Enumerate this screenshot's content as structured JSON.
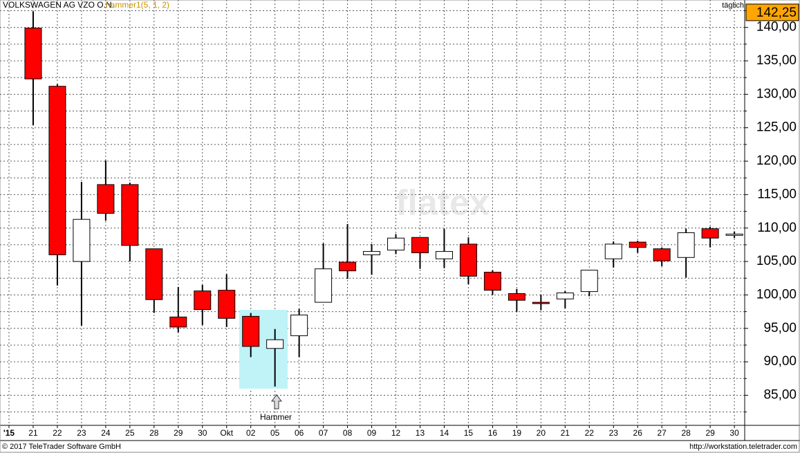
{
  "header": {
    "title": "VOLKSWAGEN AG VZO O.N.",
    "indicator": "hammer1(5, 1, 2)",
    "period": "täglich"
  },
  "watermark": "flatex",
  "footer": {
    "copyright": "© 2017 TeleTrader Software GmbH",
    "url": "http://workstation.teletrader.com"
  },
  "chart_data": {
    "type": "candlestick",
    "categories": [
      "'15",
      "21",
      "22",
      "23",
      "24",
      "25",
      "28",
      "29",
      "30",
      "Okt",
      "02",
      "05",
      "06",
      "07",
      "08",
      "09",
      "12",
      "13",
      "14",
      "15",
      "16",
      "19",
      "20",
      "21",
      "22",
      "23",
      "26",
      "27",
      "28",
      "29",
      "30"
    ],
    "open": [
      null,
      139.9,
      131.2,
      105.0,
      116.5,
      116.5,
      106.9,
      96.7,
      100.6,
      100.7,
      96.8,
      92.0,
      93.9,
      98.9,
      104.9,
      106.0,
      106.7,
      108.6,
      105.4,
      107.6,
      103.4,
      100.2,
      98.9,
      99.4,
      100.5,
      105.4,
      107.9,
      106.9,
      105.6,
      109.9,
      108.9
    ],
    "high": [
      null,
      142.4,
      131.5,
      116.9,
      120.1,
      116.8,
      106.9,
      101.2,
      101.5,
      103.1,
      97.3,
      94.9,
      97.9,
      107.7,
      110.6,
      107.6,
      109.1,
      108.6,
      109.9,
      108.6,
      103.7,
      100.9,
      100.0,
      100.6,
      103.7,
      108.0,
      108.1,
      107.1,
      109.9,
      110.2,
      109.5
    ],
    "low": [
      null,
      125.4,
      101.4,
      95.4,
      111.1,
      105.0,
      97.3,
      94.4,
      95.5,
      95.2,
      90.7,
      86.3,
      90.7,
      98.9,
      102.4,
      103.0,
      106.1,
      103.9,
      104.0,
      101.6,
      100.0,
      97.5,
      97.7,
      98.0,
      99.8,
      104.1,
      106.3,
      104.3,
      102.6,
      107.1,
      108.5
    ],
    "close": [
      null,
      132.3,
      106.0,
      111.3,
      112.2,
      107.4,
      99.3,
      95.2,
      97.8,
      96.5,
      92.3,
      93.3,
      97.0,
      103.9,
      103.6,
      106.5,
      108.5,
      106.3,
      106.5,
      102.8,
      100.7,
      99.2,
      98.7,
      100.3,
      103.7,
      107.6,
      107.1,
      105.1,
      109.3,
      108.5,
      109.1
    ],
    "up_color": "#ffffff",
    "down_color": "#ff0000",
    "last_price": {
      "value": 142.25,
      "label": "142,25"
    },
    "annotation": "Hammer",
    "ylim": [
      80.5,
      144.1
    ],
    "yticks": [
      {
        "value": 85,
        "label": "85,00"
      },
      {
        "value": 90,
        "label": "90,00"
      },
      {
        "value": 95,
        "label": "95,00"
      },
      {
        "value": 100,
        "label": "100,00"
      },
      {
        "value": 105,
        "label": "105,00"
      },
      {
        "value": 110,
        "label": "110,00"
      },
      {
        "value": 115,
        "label": "115,00"
      },
      {
        "value": 120,
        "label": "120,00"
      },
      {
        "value": 125,
        "label": "125,00"
      },
      {
        "value": 130,
        "label": "130,00"
      },
      {
        "value": 135,
        "label": "135,00"
      },
      {
        "value": 140,
        "label": "140,00"
      }
    ],
    "minor_yticks": [
      82.5,
      87.5,
      92.5,
      97.5,
      102.5,
      107.5,
      112.5,
      117.5,
      122.5,
      127.5,
      132.5,
      137.5,
      142.5
    ],
    "grid": true
  }
}
